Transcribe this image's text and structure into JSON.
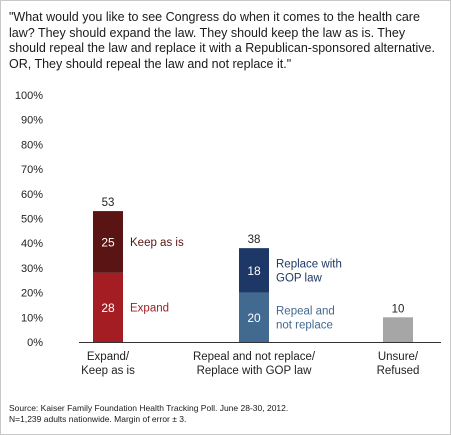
{
  "question": "\"What would you like to see Congress do when it comes to the health care law? They should expand the law. They should keep the law as is. They should repeal the law and replace it with a Republican-sponsored alternative. OR, They should repeal the law and not replace it.\"",
  "source_line1": "Source: Kaiser Family Foundation Health Tracking Poll. June 28-30, 2012.",
  "source_line2": "N=1,239 adults nationwide. Margin of error ± 3.",
  "chart_data": {
    "type": "bar",
    "stacked": true,
    "ylim": [
      0,
      100
    ],
    "yticks": [
      "0%",
      "10%",
      "20%",
      "30%",
      "40%",
      "50%",
      "60%",
      "70%",
      "80%",
      "90%",
      "100%"
    ],
    "categories": [
      {
        "label_lines": [
          "Expand/",
          "Keep as is"
        ],
        "total": 53,
        "segments": [
          {
            "value": 28,
            "label_lines": [
              "Expand"
            ],
            "color": "#a31d23",
            "label_color": "#a31d23"
          },
          {
            "value": 25,
            "label_lines": [
              "Keep as is"
            ],
            "color": "#5a1414",
            "label_color": "#5a1414"
          }
        ]
      },
      {
        "label_lines": [
          "Repeal and not replace/",
          "Replace with GOP law"
        ],
        "total": 38,
        "segments": [
          {
            "value": 20,
            "label_lines": [
              "Repeal and",
              "not replace"
            ],
            "color": "#42698f",
            "label_color": "#42698f"
          },
          {
            "value": 18,
            "label_lines": [
              "Replace with",
              "GOP law"
            ],
            "color": "#1d3866",
            "label_color": "#1d3866"
          }
        ]
      },
      {
        "label_lines": [
          "Unsure/",
          "Refused"
        ],
        "total": 10,
        "segments": [
          {
            "value": 10,
            "label_lines": [],
            "color": "#a6a6a6",
            "label_color": "#a6a6a6",
            "hide_value": true
          }
        ]
      }
    ]
  }
}
